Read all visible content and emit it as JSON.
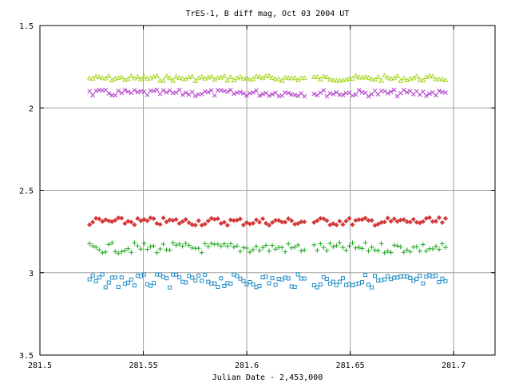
{
  "chart_data": {
    "type": "scatter",
    "title": "TrES-1, B diff mag, Oct 03 2004 UT",
    "xlabel": "Julian Date - 2,453,000",
    "ylabel": "",
    "xlim": [
      281.5,
      281.72
    ],
    "ylim": [
      1.5,
      3.5
    ],
    "y_inverted": true,
    "grid": true,
    "x_ticks": [
      281.5,
      281.55,
      281.6,
      281.65,
      281.7
    ],
    "x_tick_labels": [
      "281.5",
      "281.55",
      "281.6",
      "281.65",
      "281.7"
    ],
    "y_ticks": [
      1.5,
      2,
      2.5,
      3,
      3.5
    ],
    "y_tick_labels": [
      "1.5",
      "2",
      "2.5",
      "3",
      "3.5"
    ],
    "x_start": 281.524,
    "x_end": 281.697,
    "x_step": 0.00155,
    "gaps": [
      [
        281.5895,
        281.5905
      ],
      [
        281.628,
        281.631
      ]
    ],
    "series": [
      {
        "marker": "triangle",
        "color": "#a6d61c",
        "base": 1.82,
        "amplitude": 0.004,
        "values_note": ""
      },
      {
        "marker": "x",
        "color": "#b03ac8",
        "base": 1.91,
        "amplitude": 0.005,
        "values_note": ""
      },
      {
        "marker": "diamond",
        "color": "#d43a3a",
        "base": 2.69,
        "amplitude": 0.006,
        "values_note": ""
      },
      {
        "marker": "plus",
        "color": "#1fa81f",
        "base": 2.85,
        "amplitude": 0.008,
        "values_note": ""
      },
      {
        "marker": "square",
        "color": "#1f8fc8",
        "base": 3.05,
        "amplitude": 0.01,
        "values_note": ""
      }
    ],
    "colors": {
      "grid": "#a0a0a0",
      "axis": "#000000"
    }
  }
}
